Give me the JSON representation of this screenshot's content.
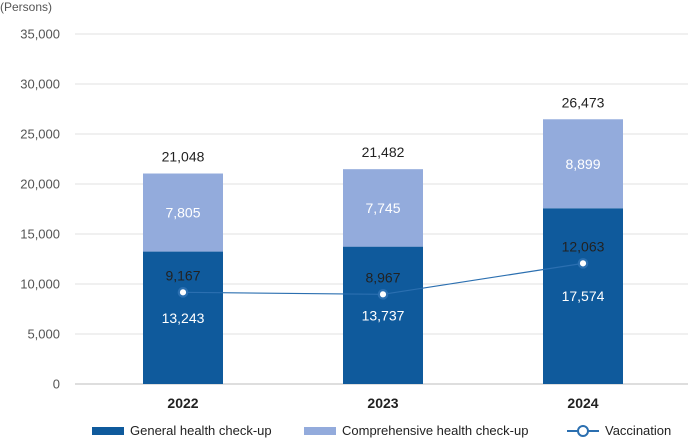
{
  "chart_data": {
    "type": "bar",
    "stacked": true,
    "unit_label": "(Persons)",
    "categories": [
      "2022",
      "2023",
      "2024"
    ],
    "series": [
      {
        "name": "General health check-up",
        "kind": "bar",
        "color": "#0f5a9c",
        "values": [
          13243,
          13737,
          17574
        ],
        "labels": [
          "13,243",
          "13,737",
          "17,574"
        ]
      },
      {
        "name": "Comprehensive health check-up",
        "kind": "bar",
        "color": "#93abdc",
        "values": [
          7805,
          7745,
          8899
        ],
        "labels": [
          "7,805",
          "7,745",
          "8,899"
        ]
      },
      {
        "name": "Vaccination",
        "kind": "line",
        "color": "#2b6fb0",
        "values": [
          9167,
          8967,
          12063
        ],
        "labels": [
          "9,167",
          "8,967",
          "12,063"
        ]
      }
    ],
    "totals": {
      "values": [
        21048,
        21482,
        26473
      ],
      "labels": [
        "21,048",
        "21,482",
        "26,473"
      ]
    },
    "ylim": [
      0,
      35000
    ],
    "yticks": [
      0,
      5000,
      10000,
      15000,
      20000,
      25000,
      30000,
      35000
    ],
    "ytick_labels": [
      "0",
      "5,000",
      "10,000",
      "15,000",
      "20,000",
      "25,000",
      "30,000",
      "35,000"
    ],
    "grid": true,
    "legend_position": "bottom",
    "xlabel": "",
    "ylabel": ""
  }
}
